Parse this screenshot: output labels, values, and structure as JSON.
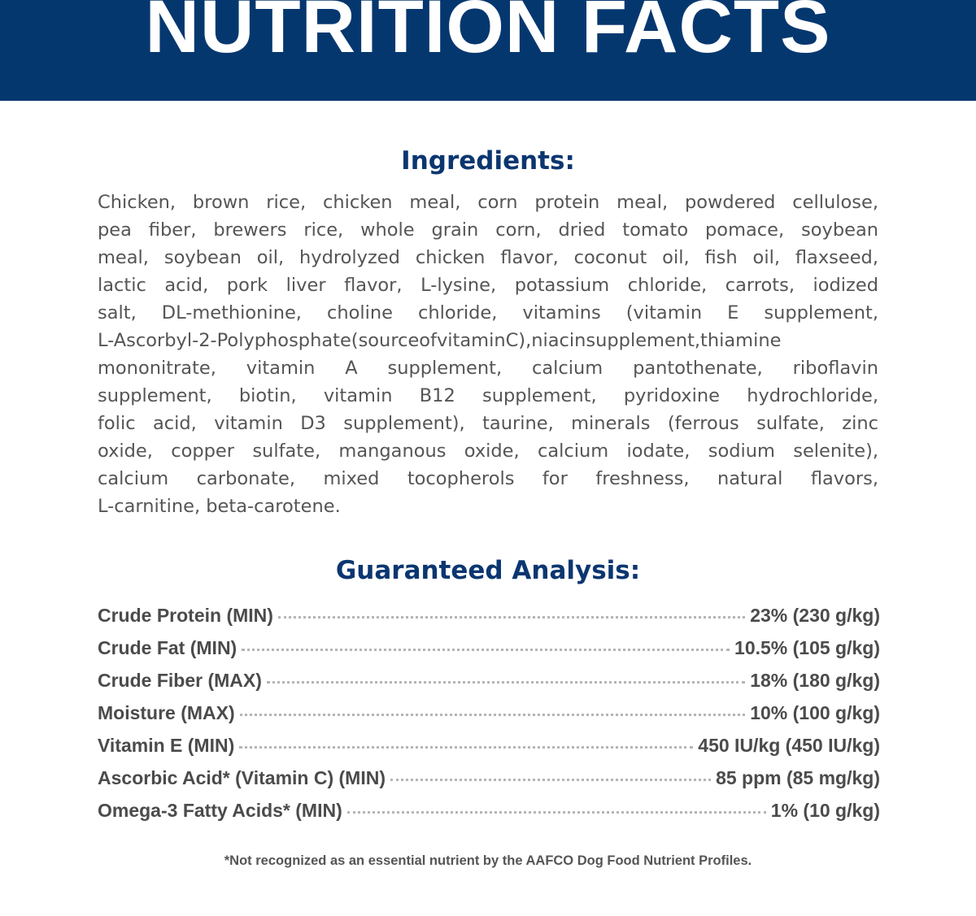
{
  "header": {
    "title": "NUTRITION FACTS",
    "color": "#05376f"
  },
  "ingredients": {
    "heading": "Ingredients:",
    "lines": [
      "Chicken, brown rice, chicken meal, corn protein meal, powdered cellulose,",
      "pea fiber, brewers rice, whole grain corn, dried tomato pomace, soybean",
      "meal, soybean oil, hydrolyzed chicken flavor, coconut oil, fish oil, flaxseed,",
      "lactic acid, pork liver flavor, L-lysine, potassium chloride, carrots, iodized",
      "salt, DL-methionine, choline chloride, vitamins (vitamin E supplement,",
      "L-Ascorbyl-2-Polyphosphate(sourceofvitaminC),niacinsupplement,thiamine",
      "mononitrate, vitamin A supplement, calcium pantothenate, riboflavin",
      "supplement, biotin, vitamin B12 supplement, pyridoxine hydrochloride,",
      "folic acid, vitamin D3 supplement), taurine, minerals (ferrous sulfate, zinc",
      "oxide, copper sulfate, manganous oxide, calcium iodate, sodium selenite),",
      "calcium carbonate, mixed tocopherols for freshness, natural flavors,",
      "L-carnitine, beta-carotene."
    ]
  },
  "analysis": {
    "heading": "Guaranteed Analysis:",
    "rows": [
      {
        "label": "Crude Protein (MIN)",
        "value": "23% (230 g/kg)"
      },
      {
        "label": "Crude Fat (MIN)",
        "value": "10.5% (105 g/kg)"
      },
      {
        "label": "Crude Fiber (MAX)",
        "value": "18% (180 g/kg)"
      },
      {
        "label": "Moisture (MAX)",
        "value": "10% (100 g/kg)"
      },
      {
        "label": "Vitamin E (MIN)",
        "value": "450 IU/kg (450 IU/kg)"
      },
      {
        "label": "Ascorbic Acid* (Vitamin C) (MIN)",
        "value": "85 ppm (85 mg/kg)"
      },
      {
        "label": "Omega-3 Fatty Acids* (MIN)",
        "value": "1% (10 g/kg)"
      }
    ],
    "footnote": "*Not recognized as an essential nutrient by the AAFCO Dog Food Nutrient Profiles."
  }
}
